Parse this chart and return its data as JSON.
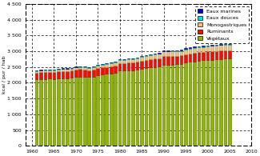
{
  "years": [
    1961,
    1962,
    1963,
    1964,
    1965,
    1966,
    1967,
    1968,
    1969,
    1970,
    1971,
    1972,
    1973,
    1974,
    1975,
    1976,
    1977,
    1978,
    1979,
    1980,
    1981,
    1982,
    1983,
    1984,
    1985,
    1986,
    1987,
    1988,
    1989,
    1990,
    1991,
    1992,
    1993,
    1994,
    1995,
    1996,
    1997,
    1998,
    1999,
    2000,
    2001,
    2002,
    2003,
    2004,
    2005
  ],
  "vegetaux": [
    2100,
    2110,
    2120,
    2130,
    2120,
    2140,
    2150,
    2140,
    2160,
    2180,
    2200,
    2200,
    2180,
    2200,
    2250,
    2260,
    2280,
    2300,
    2320,
    2380,
    2380,
    2400,
    2400,
    2420,
    2450,
    2470,
    2490,
    2500,
    2510,
    2580,
    2580,
    2580,
    2590,
    2600,
    2640,
    2660,
    2680,
    2700,
    2710,
    2720,
    2730,
    2740,
    2750,
    2760,
    2770
  ],
  "ruminants": [
    220,
    225,
    220,
    215,
    220,
    225,
    225,
    225,
    225,
    230,
    230,
    225,
    220,
    225,
    225,
    225,
    225,
    230,
    235,
    240,
    240,
    240,
    240,
    240,
    250,
    255,
    255,
    260,
    265,
    270,
    265,
    265,
    260,
    260,
    265,
    265,
    270,
    270,
    265,
    270,
    270,
    270,
    270,
    265,
    265
  ],
  "monogastriques": [
    50,
    52,
    54,
    55,
    58,
    60,
    62,
    65,
    68,
    70,
    72,
    73,
    74,
    75,
    78,
    82,
    85,
    90,
    95,
    100,
    105,
    108,
    110,
    115,
    120,
    125,
    130,
    135,
    138,
    140,
    142,
    145,
    148,
    150,
    155,
    158,
    160,
    162,
    163,
    165,
    167,
    168,
    170,
    172,
    173
  ],
  "eaux_douces": [
    15,
    15,
    15,
    15,
    15,
    16,
    16,
    16,
    16,
    17,
    17,
    17,
    17,
    17,
    18,
    18,
    18,
    18,
    19,
    19,
    19,
    20,
    20,
    20,
    20,
    20,
    21,
    21,
    21,
    21,
    21,
    22,
    22,
    22,
    22,
    22,
    22,
    22,
    22,
    22,
    22,
    22,
    22,
    22,
    22
  ],
  "eaux_marines": [
    10,
    10,
    10,
    10,
    10,
    10,
    10,
    10,
    10,
    10,
    10,
    10,
    10,
    10,
    10,
    10,
    10,
    10,
    10,
    10,
    10,
    10,
    10,
    10,
    10,
    10,
    10,
    10,
    10,
    10,
    10,
    10,
    10,
    10,
    10,
    10,
    10,
    10,
    10,
    10,
    10,
    10,
    10,
    10,
    10
  ],
  "color_vegetaux": "#8db600",
  "color_ruminants": "#ee1100",
  "color_monogastriques": "#f0c080",
  "color_eaux_douces": "#00dddd",
  "color_eaux_marines": "#0000cc",
  "color_vegetaux_edge": "#556b00",
  "color_ruminants_edge": "#aa0000",
  "ylabel": "kcal / pur / hab",
  "ylim": [
    0,
    4500
  ],
  "yticks": [
    0,
    500,
    1000,
    1500,
    2000,
    2500,
    3000,
    3500,
    4000,
    4500
  ],
  "ytick_labels": [
    "0",
    "500",
    "1 000",
    "1 500",
    "2 000",
    "2 500",
    "3 000",
    "3 500",
    "4 000",
    "4 500"
  ],
  "xtick_years": [
    1960,
    1965,
    1970,
    1975,
    1980,
    1985,
    1990,
    1995,
    2000,
    2005,
    2010
  ],
  "legend_labels": [
    "Eaux marines",
    "Eaux douces",
    "Monogastriques",
    "Ruminants",
    "Végétaux"
  ],
  "legend_colors": [
    "#0000cc",
    "#00dddd",
    "#f0c080",
    "#ee1100",
    "#8db600"
  ],
  "background_color": "#ffffff",
  "grid_color": "#000000"
}
